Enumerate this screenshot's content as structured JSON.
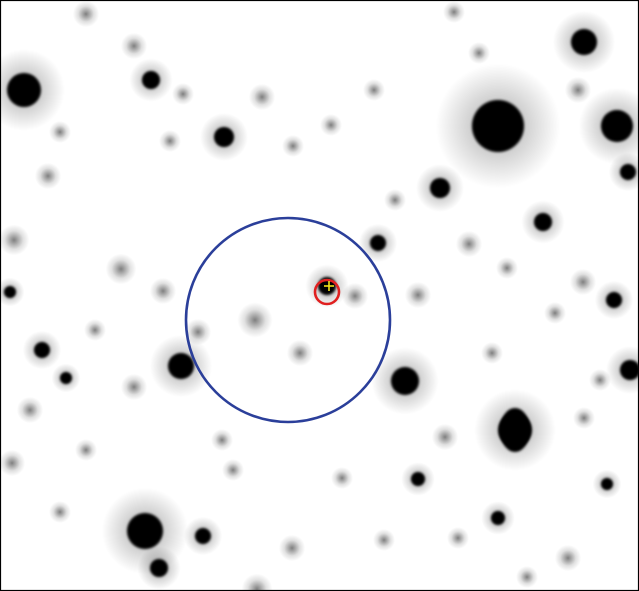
{
  "image": {
    "kind": "astronomical finder chart (inverted grayscale star field)",
    "background_color": "#ffffff",
    "border_color": "#000000",
    "star_color": "#000000"
  },
  "overlays": {
    "search_circle": {
      "color": "#2b3f9a"
    },
    "target_circle": {
      "color": "#e02020"
    },
    "target_marker": {
      "color": "#f2e21a",
      "glyph": "+"
    }
  }
}
